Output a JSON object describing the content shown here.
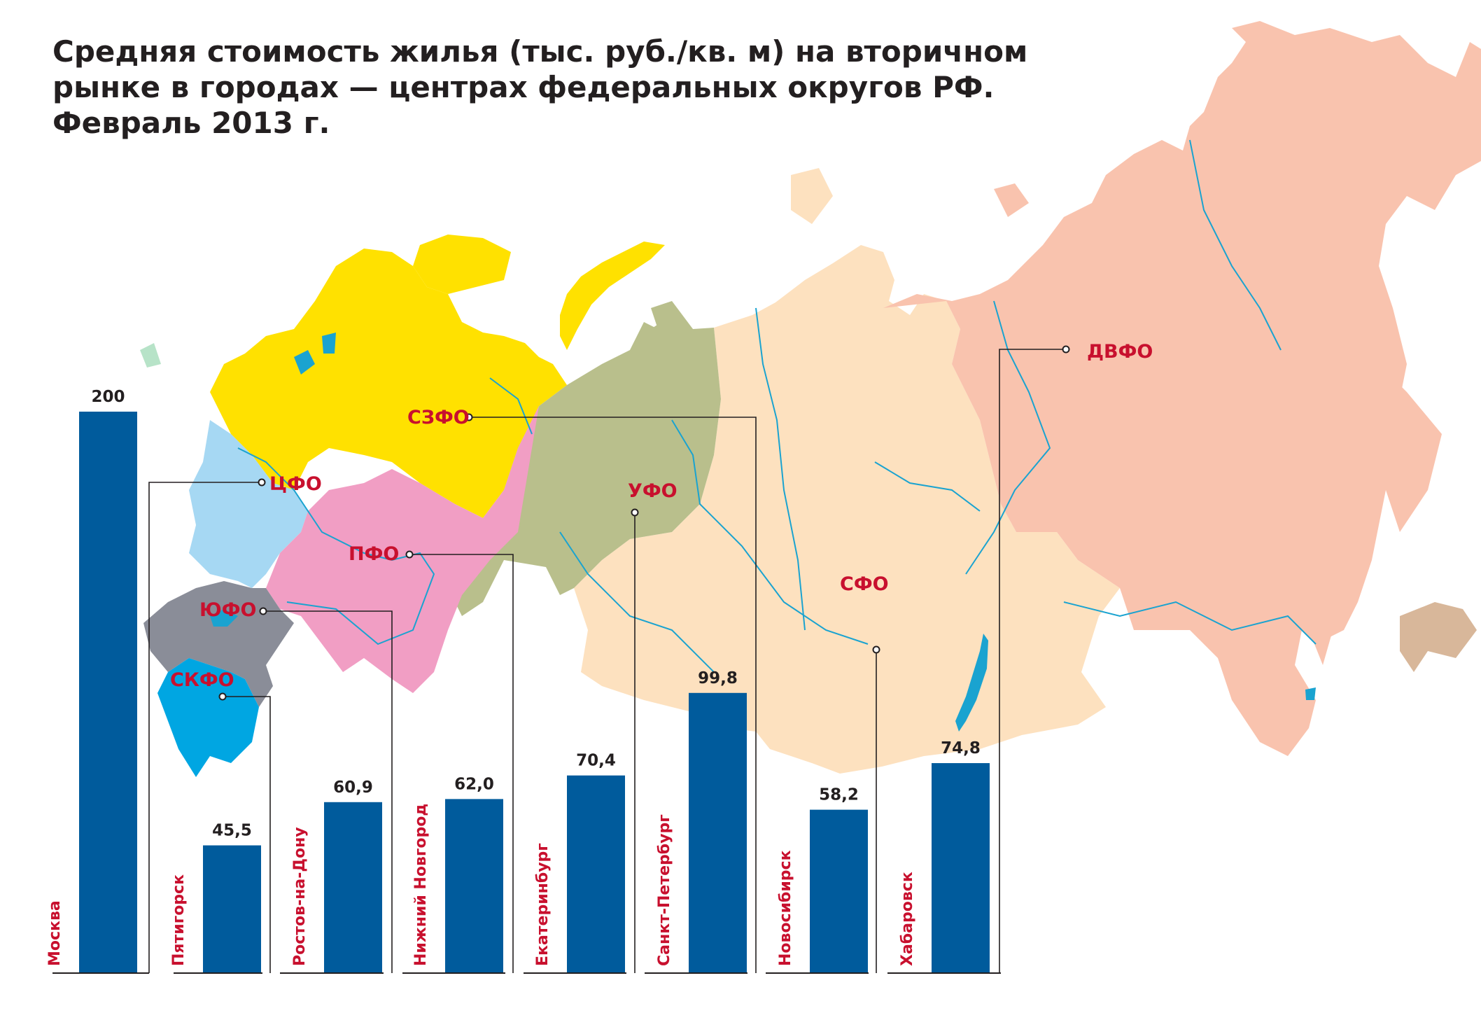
{
  "title": {
    "line1": "Средняя стоимость жилья (тыс. руб./кв. м) на вторичном",
    "line2": "рынке в городах — центрах федеральных округов РФ.",
    "line3": "Февраль 2013 г."
  },
  "colors": {
    "bar": "#005b9c",
    "district_label": "#c8102e",
    "text": "#231f20",
    "szfo": "#ffe100",
    "cfo": "#a6d8f3",
    "pfo": "#f19ec4",
    "yufo": "#8a8d98",
    "skfo": "#00a6e2",
    "ufo": "#b9bf8c",
    "sfo": "#fde1bf",
    "dvfo": "#f9c3ae",
    "water": "#1aa3d0"
  },
  "districts": [
    {
      "key": "cfo",
      "label": "ЦФО"
    },
    {
      "key": "szfo",
      "label": "СЗФО"
    },
    {
      "key": "pfo",
      "label": "ПФО"
    },
    {
      "key": "yufo",
      "label": "ЮФО"
    },
    {
      "key": "skfo",
      "label": "СКФО"
    },
    {
      "key": "ufo",
      "label": "УФО"
    },
    {
      "key": "sfo",
      "label": "СФО"
    },
    {
      "key": "dvfo",
      "label": "ДВФО"
    }
  ],
  "chart_data": {
    "type": "bar",
    "categories": [
      "Москва",
      "Пятигорск",
      "Ростов-на-Дону",
      "Нижний Новгород",
      "Екатеринбург",
      "Санкт-Петербург",
      "Новосибирск",
      "Хабаровск"
    ],
    "values": [
      200,
      45.5,
      60.9,
      62.0,
      70.4,
      99.8,
      58.2,
      74.8
    ],
    "value_labels": [
      "200",
      "45,5",
      "60,9",
      "62,0",
      "70,4",
      "99,8",
      "58,2",
      "74,8"
    ],
    "district_of_city": [
      "ЦФО",
      "СКФО",
      "ЮФО",
      "ПФО",
      "УФО",
      "СЗФО",
      "СФО",
      "ДВФО"
    ],
    "title": "Средняя стоимость жилья (тыс. руб./кв. м) на вторичном рынке в городах — центрах федеральных округов РФ. Февраль 2013 г.",
    "xlabel": "",
    "ylabel": "",
    "ylim": [
      0,
      200
    ],
    "grid": false,
    "legend": "none"
  }
}
